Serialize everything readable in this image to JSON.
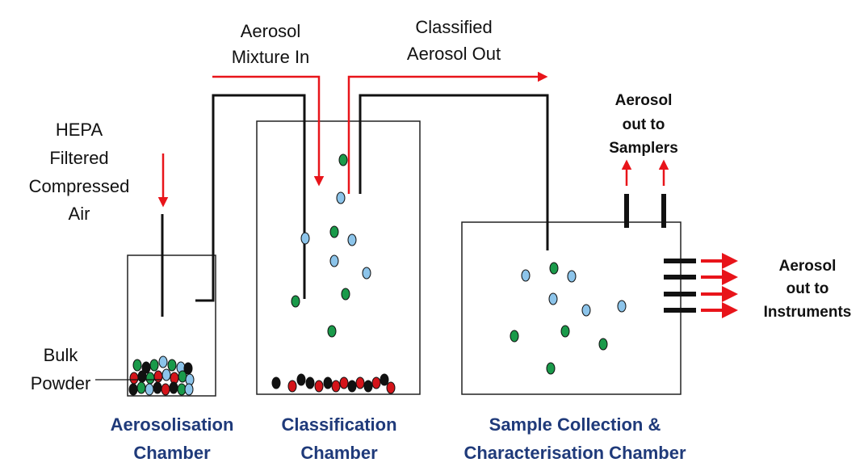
{
  "inlet_label": {
    "lines": [
      "Aerosol",
      "Mixture In"
    ]
  },
  "outlet_label": {
    "lines": [
      "Classified",
      "Aerosol Out"
    ]
  },
  "hepa_label": {
    "lines": [
      "HEPA",
      "Filtered",
      "Compressed",
      "Air"
    ]
  },
  "samplers_label": {
    "lines": [
      "Aerosol",
      "out to",
      "Samplers"
    ]
  },
  "instruments_label": {
    "lines": [
      "Aerosol",
      "out to",
      "Instruments"
    ]
  },
  "powder_label": {
    "lines": [
      "Bulk",
      "Powder"
    ]
  },
  "chambers": [
    {
      "lines": [
        "Aerosolisation",
        "Chamber"
      ]
    },
    {
      "lines": [
        "Classification",
        "Chamber"
      ]
    },
    {
      "lines": [
        "Sample Collection &",
        "Characterisation Chamber"
      ]
    }
  ]
}
